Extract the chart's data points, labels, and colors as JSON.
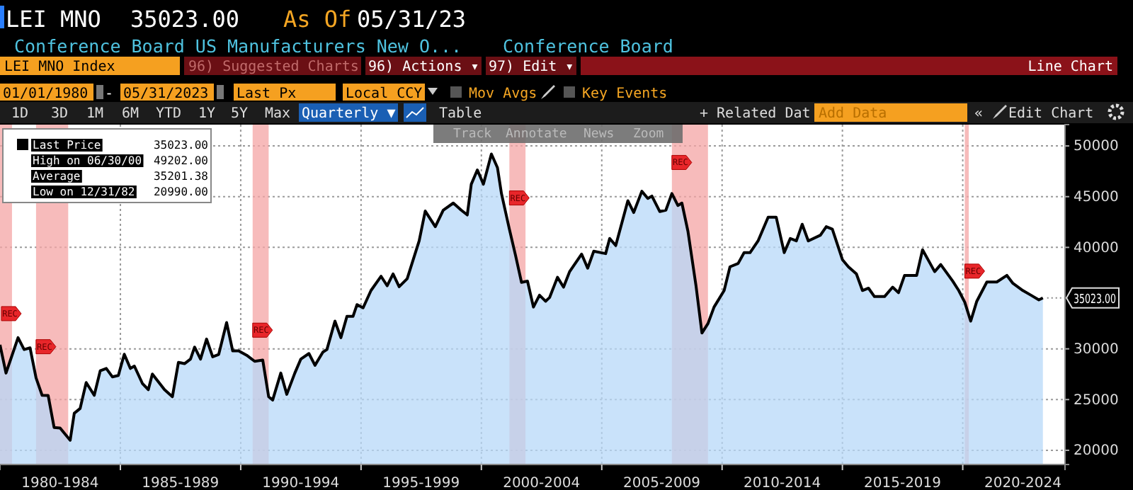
{
  "chart_data": {
    "type": "area",
    "x": [
      "1980-01",
      "1980-04",
      "1980-10",
      "1981-01",
      "1981-04",
      "1981-07",
      "1981-10",
      "1982-01",
      "1982-04",
      "1982-07",
      "1982-12",
      "1983-02",
      "1983-05",
      "1983-08",
      "1983-12",
      "1984-03",
      "1984-06",
      "1984-09",
      "1984-12",
      "1985-03",
      "1985-06",
      "1985-08",
      "1985-12",
      "1986-03",
      "1986-05",
      "1986-11",
      "1987-03",
      "1987-06",
      "1987-09",
      "1987-12",
      "1988-02",
      "1988-05",
      "1988-08",
      "1988-11",
      "1989-02",
      "1989-06",
      "1989-09",
      "1989-12",
      "1990-04",
      "1990-08",
      "1990-12",
      "1991-03",
      "1991-05",
      "1991-09",
      "1991-12",
      "1992-04",
      "1992-07",
      "1992-11",
      "1993-02",
      "1993-06",
      "1993-08",
      "1993-12",
      "1994-03",
      "1994-06",
      "1994-09",
      "1994-11",
      "1995-02",
      "1995-06",
      "1995-11",
      "1996-02",
      "1996-05",
      "1996-08",
      "1996-12",
      "1997-06",
      "1997-09",
      "1998-02",
      "1998-06",
      "1998-11",
      "1999-03",
      "1999-06",
      "1999-08",
      "1999-11",
      "2000-02",
      "2000-06",
      "2000-09",
      "2000-11",
      "2001-03",
      "2001-06",
      "2001-09",
      "2001-12",
      "2002-03",
      "2002-06",
      "2002-09",
      "2002-11",
      "2003-03",
      "2003-06",
      "2003-09",
      "2004-03",
      "2004-06",
      "2004-09",
      "2005-03",
      "2005-05",
      "2005-08",
      "2006-02",
      "2006-05",
      "2006-09",
      "2006-12",
      "2007-02",
      "2007-06",
      "2007-09",
      "2007-12",
      "2008-03",
      "2008-05",
      "2008-08",
      "2008-12",
      "2009-03",
      "2009-06",
      "2009-09",
      "2010-02",
      "2010-05",
      "2010-09",
      "2010-12",
      "2011-03",
      "2011-07",
      "2011-12",
      "2012-04",
      "2012-08",
      "2012-11",
      "2013-02",
      "2013-05",
      "2013-08",
      "2014-02",
      "2014-05",
      "2014-08",
      "2015-01",
      "2015-04",
      "2015-08",
      "2015-11",
      "2016-02",
      "2016-05",
      "2016-10",
      "2017-02",
      "2017-05",
      "2017-08",
      "2018-02",
      "2018-05",
      "2018-08",
      "2018-11",
      "2019-02",
      "2019-08",
      "2019-11",
      "2020-02",
      "2020-05",
      "2020-08",
      "2021-01",
      "2021-06",
      "2021-11",
      "2022-02",
      "2022-07",
      "2022-11",
      "2023-03",
      "2023-05"
    ],
    "series": [
      {
        "name": "Last Price",
        "color": "#000000",
        "values": [
          30400,
          27610,
          31100,
          29930,
          30100,
          27140,
          25420,
          25400,
          22250,
          22200,
          20990,
          23650,
          24120,
          26680,
          25420,
          27840,
          28070,
          27240,
          27380,
          29470,
          28070,
          28300,
          26590,
          25980,
          27520,
          25980,
          25280,
          28670,
          28540,
          28990,
          30170,
          28990,
          30960,
          29220,
          29450,
          32590,
          29800,
          29800,
          29370,
          28770,
          28900,
          25280,
          24960,
          27610,
          25520,
          27610,
          28990,
          29540,
          28380,
          29680,
          29930,
          32730,
          31100,
          33200,
          33200,
          34360,
          34040,
          35750,
          37150,
          36220,
          37390,
          36130,
          36910,
          40640,
          43580,
          42040,
          43670,
          44370,
          43670,
          43200,
          46230,
          47630,
          46230,
          49202,
          47860,
          45300,
          41800,
          39250,
          36550,
          36680,
          34120,
          35290,
          34690,
          35060,
          37050,
          36080,
          37610,
          39340,
          37950,
          39620,
          39390,
          40880,
          40180,
          44600,
          43440,
          45530,
          44830,
          45060,
          43530,
          43670,
          45300,
          44130,
          44370,
          41580,
          36220,
          31560,
          32500,
          34120,
          35750,
          38090,
          38410,
          39480,
          39480,
          40640,
          42980,
          42980,
          39480,
          40880,
          40640,
          42280,
          40640,
          41200,
          42040,
          41800,
          38790,
          38090,
          37390,
          35750,
          35980,
          35150,
          35150,
          36080,
          35530,
          37240,
          37240,
          39760,
          38690,
          37610,
          38310,
          36680,
          35750,
          34590,
          32730,
          34690,
          36590,
          36590,
          37240,
          36450,
          35750,
          35290,
          34830,
          35023
        ]
      }
    ],
    "xlim": [
      "1980-01",
      "2024-04"
    ],
    "xticks": [
      {
        "value": "1982-07",
        "label": "1980-1984"
      },
      {
        "value": "1985-01",
        "label": null
      },
      {
        "value": "1987-07",
        "label": "1985-1989"
      },
      {
        "value": "1990-01",
        "label": null
      },
      {
        "value": "1992-07",
        "label": "1990-1994"
      },
      {
        "value": "1995-01",
        "label": null
      },
      {
        "value": "1997-07",
        "label": "1995-1999"
      },
      {
        "value": "2000-01",
        "label": null
      },
      {
        "value": "2002-07",
        "label": "2000-2004"
      },
      {
        "value": "2005-01",
        "label": null
      },
      {
        "value": "2007-07",
        "label": "2005-2009"
      },
      {
        "value": "2010-01",
        "label": null
      },
      {
        "value": "2012-07",
        "label": "2010-2014"
      },
      {
        "value": "2015-01",
        "label": null
      },
      {
        "value": "2017-07",
        "label": "2015-2019"
      },
      {
        "value": "2020-01",
        "label": null
      },
      {
        "value": "2022-07",
        "label": "2020-2024"
      }
    ],
    "ylim": [
      18600,
      52100
    ],
    "yticks": [
      20000,
      25000,
      30000,
      40000,
      45000,
      50000
    ],
    "grid": true,
    "legend": "top left",
    "bands": [
      {
        "axis": "x",
        "from": "1980-01",
        "to": "1980-07",
        "label": "REC",
        "color": "#f4a4a4"
      },
      {
        "axis": "x",
        "from": "1981-07",
        "to": "1982-11",
        "label": "REC",
        "color": "#f4a4a4"
      },
      {
        "axis": "x",
        "from": "1990-07",
        "to": "1991-03",
        "label": "REC",
        "color": "#f4a4a4"
      },
      {
        "axis": "x",
        "from": "2001-03",
        "to": "2001-11",
        "label": "REC",
        "color": "#f4a4a4"
      },
      {
        "axis": "x",
        "from": "2007-12",
        "to": "2009-06",
        "label": "REC",
        "color": "#f4a4a4"
      },
      {
        "axis": "x",
        "from": "2020-02",
        "to": "2020-04",
        "label": "REC",
        "color": "#f4a4a4"
      }
    ],
    "annotations": [
      "LEI MNO",
      "35023.00",
      "As Of",
      "05/31/23",
      "Conference Board US Manufacturers New O...",
      "Conference Board",
      "LEI MNO Index",
      "96) Suggested Charts",
      "96) Actions ▾",
      "97) Edit ▾",
      "Line Chart",
      "01/01/1980",
      "-",
      "05/31/2023",
      "Last Px",
      "Local CCY",
      "Mov Avgs",
      "Key Events",
      "1D",
      "3D",
      "1M",
      "6M",
      "YTD",
      "1Y",
      "5Y",
      "Max",
      "Quarterly ▼",
      "Table",
      "+ Related Dat",
      "Add Data",
      "«",
      "Edit Chart",
      "Track",
      "Annotate",
      "News",
      "Zoom",
      "35023.00",
      "High on 06/30/00",
      "49202.00",
      "Average",
      "35201.38",
      "Low on 12/31/82",
      "20990.00",
      {
        "text": "35023.00",
        "x": "2023-05",
        "y": 35023
      }
    ]
  }
}
